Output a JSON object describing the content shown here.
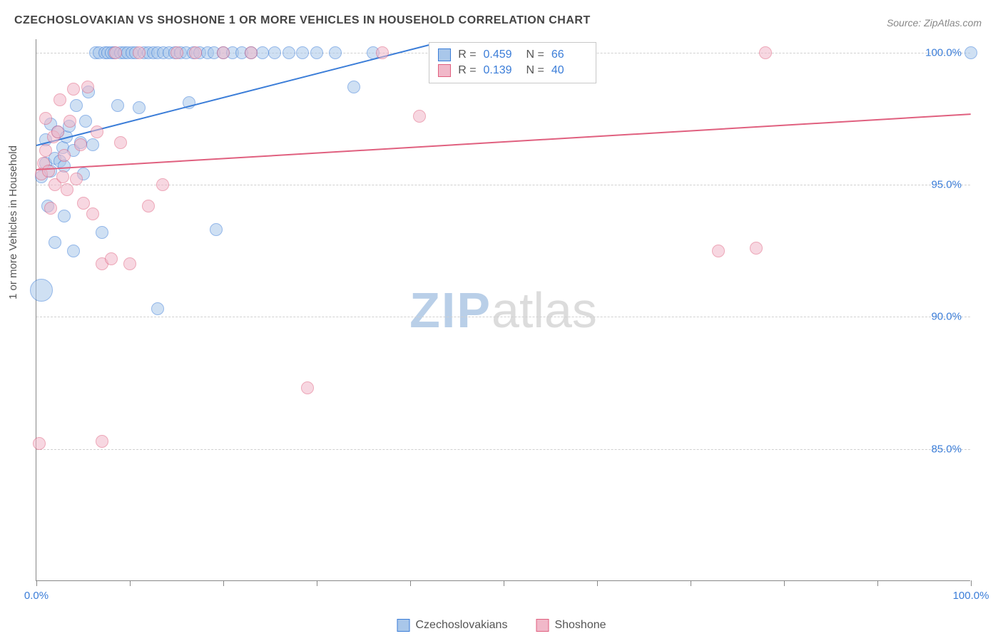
{
  "title": "CZECHOSLOVAKIAN VS SHOSHONE 1 OR MORE VEHICLES IN HOUSEHOLD CORRELATION CHART",
  "source": "Source: ZipAtlas.com",
  "ylabel": "1 or more Vehicles in Household",
  "watermark": {
    "left": "ZIP",
    "right": "atlas"
  },
  "chart": {
    "type": "scatter",
    "background_color": "#ffffff",
    "grid_color": "#d0d0d0",
    "axis_color": "#888888",
    "text_color": "#555555",
    "value_color": "#3b7dd8",
    "xlim": [
      0,
      100
    ],
    "ylim": [
      80,
      100.5
    ],
    "yticks": [
      {
        "v": 100,
        "label": "100.0%"
      },
      {
        "v": 95,
        "label": "95.0%"
      },
      {
        "v": 90,
        "label": "90.0%"
      },
      {
        "v": 85,
        "label": "85.0%"
      }
    ],
    "xticks": [
      {
        "v": 0,
        "label": "0.0%"
      },
      {
        "v": 10,
        "label": ""
      },
      {
        "v": 20,
        "label": ""
      },
      {
        "v": 30,
        "label": ""
      },
      {
        "v": 40,
        "label": ""
      },
      {
        "v": 50,
        "label": ""
      },
      {
        "v": 60,
        "label": ""
      },
      {
        "v": 70,
        "label": ""
      },
      {
        "v": 80,
        "label": ""
      },
      {
        "v": 90,
        "label": ""
      },
      {
        "v": 100,
        "label": "100.0%"
      }
    ],
    "marker_radius": 9,
    "marker_stroke_width": 1.5,
    "trend_line_width": 2,
    "series": [
      {
        "name": "Czechoslovakians",
        "fill": "#a9c7ea",
        "stroke": "#3b7dd8",
        "fill_opacity": 0.55,
        "stats": {
          "R": "0.459",
          "N": "66"
        },
        "trend": {
          "x1": 0,
          "y1": 96.5,
          "x2": 42,
          "y2": 100.3
        },
        "points": [
          {
            "x": 0.5,
            "y": 95.3
          },
          {
            "x": 0.5,
            "y": 91.0,
            "r": 16
          },
          {
            "x": 1,
            "y": 95.8
          },
          {
            "x": 1,
            "y": 96.7
          },
          {
            "x": 1.2,
            "y": 94.2
          },
          {
            "x": 1.5,
            "y": 95.5
          },
          {
            "x": 1.5,
            "y": 97.3
          },
          {
            "x": 2,
            "y": 96.0
          },
          {
            "x": 2,
            "y": 92.8
          },
          {
            "x": 2.3,
            "y": 97.0
          },
          {
            "x": 2.5,
            "y": 95.9
          },
          {
            "x": 2.8,
            "y": 96.4
          },
          {
            "x": 3,
            "y": 95.7
          },
          {
            "x": 3,
            "y": 93.8
          },
          {
            "x": 3.2,
            "y": 96.8
          },
          {
            "x": 3.5,
            "y": 97.2
          },
          {
            "x": 4,
            "y": 96.3
          },
          {
            "x": 4,
            "y": 92.5
          },
          {
            "x": 4.3,
            "y": 98.0
          },
          {
            "x": 4.7,
            "y": 96.6
          },
          {
            "x": 5,
            "y": 95.4
          },
          {
            "x": 5.3,
            "y": 97.4
          },
          {
            "x": 5.6,
            "y": 98.5
          },
          {
            "x": 6,
            "y": 96.5
          },
          {
            "x": 6.3,
            "y": 100
          },
          {
            "x": 6.7,
            "y": 100
          },
          {
            "x": 7,
            "y": 93.2
          },
          {
            "x": 7.3,
            "y": 100
          },
          {
            "x": 7.6,
            "y": 100
          },
          {
            "x": 8,
            "y": 100
          },
          {
            "x": 8.3,
            "y": 100
          },
          {
            "x": 8.7,
            "y": 98.0
          },
          {
            "x": 9,
            "y": 100
          },
          {
            "x": 9.4,
            "y": 100
          },
          {
            "x": 9.8,
            "y": 100
          },
          {
            "x": 10.2,
            "y": 100
          },
          {
            "x": 10.6,
            "y": 100
          },
          {
            "x": 11,
            "y": 97.9
          },
          {
            "x": 11.5,
            "y": 100
          },
          {
            "x": 12,
            "y": 100
          },
          {
            "x": 12.5,
            "y": 100
          },
          {
            "x": 13,
            "y": 100
          },
          {
            "x": 13,
            "y": 90.3
          },
          {
            "x": 13.6,
            "y": 100
          },
          {
            "x": 14.2,
            "y": 100
          },
          {
            "x": 14.8,
            "y": 100
          },
          {
            "x": 15.4,
            "y": 100
          },
          {
            "x": 16,
            "y": 100
          },
          {
            "x": 16.3,
            "y": 98.1
          },
          {
            "x": 16.8,
            "y": 100
          },
          {
            "x": 17.5,
            "y": 100
          },
          {
            "x": 18.3,
            "y": 100
          },
          {
            "x": 19,
            "y": 100
          },
          {
            "x": 19.2,
            "y": 93.3
          },
          {
            "x": 20,
            "y": 100
          },
          {
            "x": 21,
            "y": 100
          },
          {
            "x": 22,
            "y": 100
          },
          {
            "x": 23,
            "y": 100
          },
          {
            "x": 24.2,
            "y": 100
          },
          {
            "x": 25.5,
            "y": 100
          },
          {
            "x": 27,
            "y": 100
          },
          {
            "x": 28.5,
            "y": 100
          },
          {
            "x": 30,
            "y": 100
          },
          {
            "x": 32,
            "y": 100
          },
          {
            "x": 34,
            "y": 98.7
          },
          {
            "x": 36,
            "y": 100
          },
          {
            "x": 100,
            "y": 100
          }
        ]
      },
      {
        "name": "Shoshone",
        "fill": "#f1b8c9",
        "stroke": "#e0607f",
        "fill_opacity": 0.55,
        "stats": {
          "R": "0.139",
          "N": "40"
        },
        "trend": {
          "x1": 0,
          "y1": 95.6,
          "x2": 100,
          "y2": 97.7
        },
        "points": [
          {
            "x": 0.3,
            "y": 85.2
          },
          {
            "x": 0.5,
            "y": 95.4
          },
          {
            "x": 0.8,
            "y": 95.8
          },
          {
            "x": 1,
            "y": 96.3
          },
          {
            "x": 1,
            "y": 97.5
          },
          {
            "x": 1.3,
            "y": 95.5
          },
          {
            "x": 1.5,
            "y": 94.1
          },
          {
            "x": 1.8,
            "y": 96.8
          },
          {
            "x": 2,
            "y": 95.0
          },
          {
            "x": 2.3,
            "y": 97.0
          },
          {
            "x": 2.5,
            "y": 98.2
          },
          {
            "x": 2.8,
            "y": 95.3
          },
          {
            "x": 3,
            "y": 96.1
          },
          {
            "x": 3.3,
            "y": 94.8
          },
          {
            "x": 3.6,
            "y": 97.4
          },
          {
            "x": 4,
            "y": 98.6
          },
          {
            "x": 4.3,
            "y": 95.2
          },
          {
            "x": 4.7,
            "y": 96.5
          },
          {
            "x": 5,
            "y": 94.3
          },
          {
            "x": 5.5,
            "y": 98.7
          },
          {
            "x": 6,
            "y": 93.9
          },
          {
            "x": 6.5,
            "y": 97.0
          },
          {
            "x": 7,
            "y": 92.0
          },
          {
            "x": 7,
            "y": 85.3
          },
          {
            "x": 8,
            "y": 92.2
          },
          {
            "x": 8.5,
            "y": 100
          },
          {
            "x": 9,
            "y": 96.6
          },
          {
            "x": 10,
            "y": 92.0
          },
          {
            "x": 11,
            "y": 100
          },
          {
            "x": 12,
            "y": 94.2
          },
          {
            "x": 13.5,
            "y": 95.0
          },
          {
            "x": 15,
            "y": 100
          },
          {
            "x": 17,
            "y": 100
          },
          {
            "x": 20,
            "y": 100
          },
          {
            "x": 23,
            "y": 100
          },
          {
            "x": 29,
            "y": 87.3
          },
          {
            "x": 37,
            "y": 100
          },
          {
            "x": 41,
            "y": 97.6
          },
          {
            "x": 73,
            "y": 92.5
          },
          {
            "x": 77,
            "y": 92.6
          },
          {
            "x": 78,
            "y": 100
          }
        ]
      }
    ]
  },
  "legend": [
    {
      "label": "Czechoslovakians",
      "fill": "#a9c7ea",
      "stroke": "#3b7dd8"
    },
    {
      "label": "Shoshone",
      "fill": "#f1b8c9",
      "stroke": "#e0607f"
    }
  ]
}
